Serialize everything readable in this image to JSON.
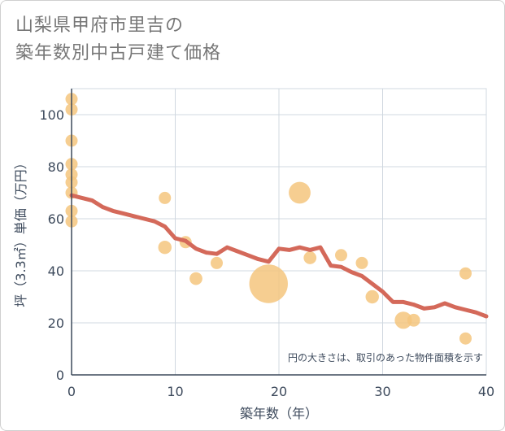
{
  "chart_data": {
    "type": "scatter",
    "title_lines": [
      "山梨県甲府市里吉の",
      "築年数別中古戸建て価格"
    ],
    "xlabel": "築年数（年）",
    "ylabel": "坪（3.3㎡）単価（万円）",
    "xlim": [
      0,
      40
    ],
    "ylim": [
      0,
      110
    ],
    "xticks": [
      0,
      10,
      20,
      30,
      40
    ],
    "yticks": [
      0,
      20,
      40,
      60,
      80,
      100
    ],
    "note": "円の大きさは、取引のあった物件面積を示す",
    "colors": {
      "bubble": "#f5c57e",
      "line": "#d4695a",
      "grid": "#d0d8e0"
    },
    "scatter_series": [
      {
        "x": 0,
        "y": 106,
        "size": 1
      },
      {
        "x": 0,
        "y": 102,
        "size": 1
      },
      {
        "x": 0,
        "y": 90,
        "size": 1
      },
      {
        "x": 0,
        "y": 81,
        "size": 1
      },
      {
        "x": 0,
        "y": 77,
        "size": 1
      },
      {
        "x": 0,
        "y": 74,
        "size": 1
      },
      {
        "x": 0,
        "y": 70,
        "size": 1
      },
      {
        "x": 0,
        "y": 63,
        "size": 1
      },
      {
        "x": 0,
        "y": 59,
        "size": 1
      },
      {
        "x": 9,
        "y": 68,
        "size": 1
      },
      {
        "x": 9,
        "y": 49,
        "size": 1.2
      },
      {
        "x": 11,
        "y": 51,
        "size": 1
      },
      {
        "x": 12,
        "y": 37,
        "size": 1.1
      },
      {
        "x": 14,
        "y": 43,
        "size": 1
      },
      {
        "x": 19,
        "y": 35,
        "size": 10
      },
      {
        "x": 22,
        "y": 70,
        "size": 3.2
      },
      {
        "x": 23,
        "y": 45,
        "size": 1.1
      },
      {
        "x": 26,
        "y": 46,
        "size": 1
      },
      {
        "x": 28,
        "y": 43,
        "size": 1
      },
      {
        "x": 29,
        "y": 30,
        "size": 1.2
      },
      {
        "x": 32,
        "y": 21,
        "size": 2.0
      },
      {
        "x": 33,
        "y": 21,
        "size": 1.1
      },
      {
        "x": 38,
        "y": 39,
        "size": 1
      },
      {
        "x": 38,
        "y": 14,
        "size": 1
      }
    ],
    "line_series": {
      "x": [
        0,
        1,
        2,
        3,
        4,
        5,
        6,
        7,
        8,
        9,
        10,
        11,
        12,
        13,
        14,
        15,
        16,
        17,
        18,
        19,
        20,
        21,
        22,
        23,
        24,
        25,
        26,
        27,
        28,
        29,
        30,
        31,
        32,
        33,
        34,
        35,
        36,
        37,
        38,
        39,
        40
      ],
      "y": [
        69,
        68,
        67,
        64.5,
        63,
        62,
        61,
        60,
        59,
        57,
        52.5,
        51.5,
        48.5,
        47,
        46.5,
        49,
        47.5,
        46,
        44.5,
        43.5,
        48.5,
        48,
        49,
        48,
        49,
        42,
        41.5,
        39.5,
        38,
        35,
        32,
        28,
        28,
        27,
        25.5,
        26,
        27.5,
        26,
        25,
        24,
        22.5
      ]
    }
  }
}
